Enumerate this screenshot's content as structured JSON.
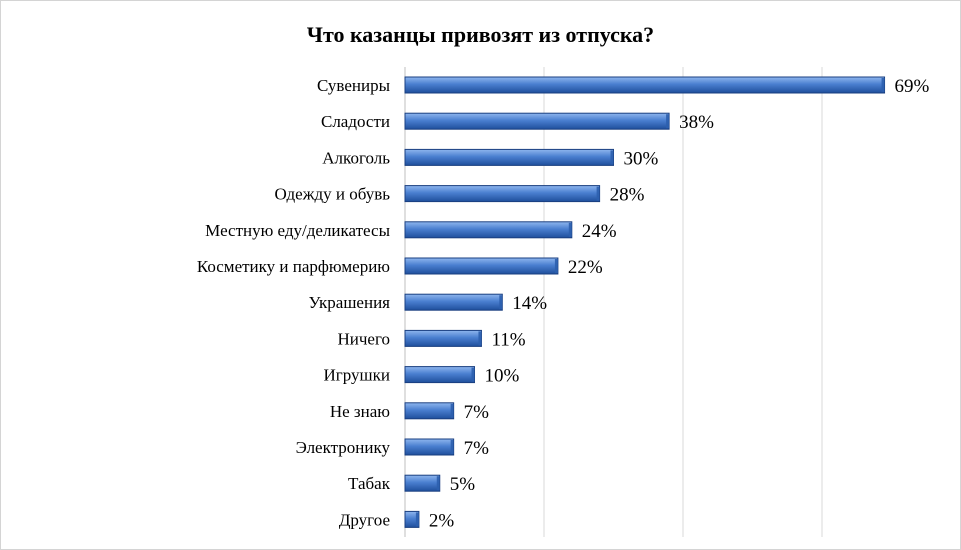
{
  "chart_data": {
    "type": "bar",
    "orientation": "horizontal",
    "title": "Что казанцы привозят из отпуска?",
    "categories": [
      "Сувениры",
      "Сладости",
      "Алкоголь",
      "Одежду и обувь",
      "Местную еду/деликатесы",
      "Косметику и парфюмерию",
      "Украшения",
      "Ничего",
      "Игрушки",
      "Не знаю",
      "Электронику",
      "Табак",
      "Другое"
    ],
    "values": [
      69,
      38,
      30,
      28,
      24,
      22,
      14,
      11,
      10,
      7,
      7,
      5,
      2
    ],
    "data_labels": [
      "69%",
      "38%",
      "30%",
      "28%",
      "24%",
      "22%",
      "14%",
      "11%",
      "10%",
      "7%",
      "7%",
      "5%",
      "2%"
    ],
    "xlim": [
      0,
      80
    ],
    "grid": true,
    "bar_color": "#4a7fd0"
  }
}
